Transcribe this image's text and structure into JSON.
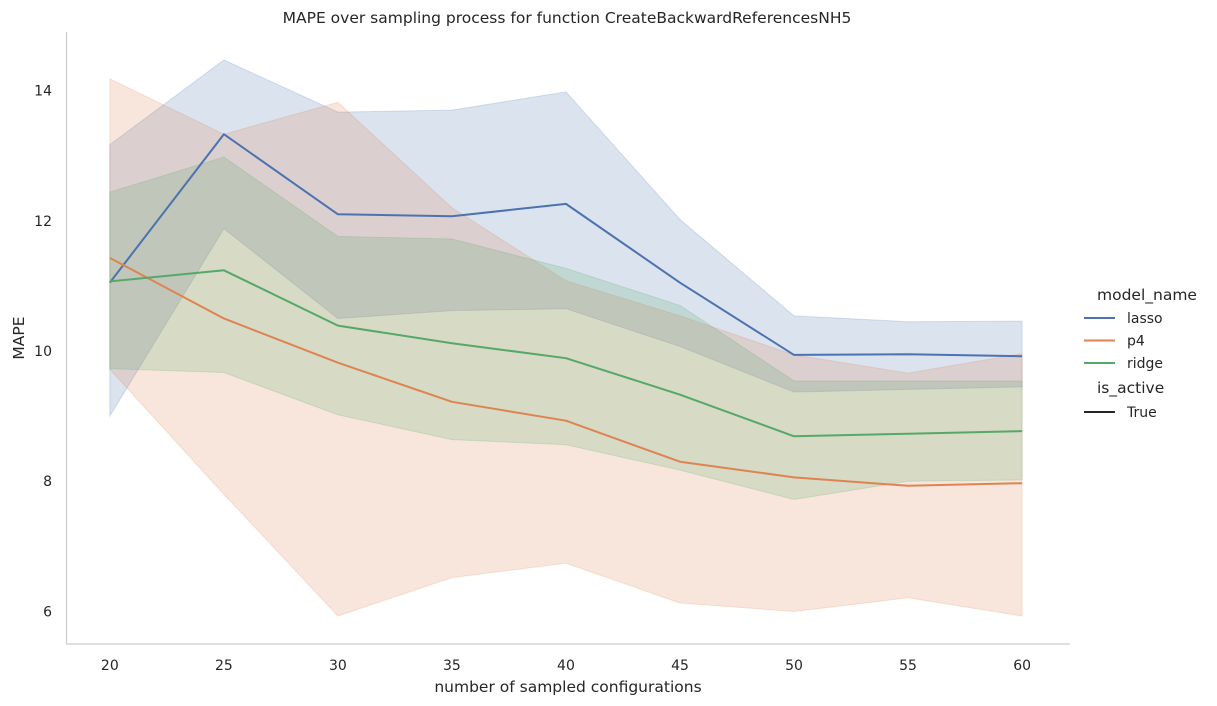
{
  "chart_data": {
    "type": "line",
    "title": "MAPE over sampling process for function CreateBackwardReferencesNH5",
    "xlabel": "number of sampled configurations",
    "ylabel": "MAPE",
    "x": [
      20,
      25,
      30,
      35,
      40,
      45,
      50,
      55,
      60
    ],
    "x_ticks": [
      "20",
      "25",
      "30",
      "35",
      "40",
      "45",
      "50",
      "55",
      "60"
    ],
    "y_ticks": [
      "6",
      "8",
      "10",
      "12",
      "14"
    ],
    "xlim": [
      18.1,
      62.1
    ],
    "ylim": [
      5.5,
      14.9
    ],
    "grid": false,
    "legend_position": "right",
    "legend": {
      "title": "model_name",
      "hue_title": "is_active",
      "style_entry": "True"
    },
    "series": [
      {
        "name": "lasso",
        "color": "#4c72b0",
        "values": [
          11.05,
          13.33,
          12.1,
          12.07,
          12.26,
          11.05,
          9.94,
          9.95,
          9.92
        ],
        "ci_low": [
          9.0,
          11.88,
          10.5,
          10.62,
          10.65,
          10.07,
          9.37,
          9.41,
          9.45
        ],
        "ci_high": [
          13.17,
          14.47,
          13.67,
          13.7,
          13.98,
          12.02,
          10.54,
          10.45,
          10.46
        ]
      },
      {
        "name": "p4",
        "color": "#dd8452",
        "values": [
          11.43,
          10.5,
          9.82,
          9.22,
          8.93,
          8.3,
          8.06,
          7.93,
          7.97
        ],
        "ci_low": [
          9.72,
          7.8,
          5.93,
          6.52,
          6.74,
          6.13,
          6.0,
          6.21,
          5.93
        ],
        "ci_high": [
          14.18,
          13.33,
          13.82,
          12.2,
          11.08,
          10.54,
          9.94,
          9.66,
          9.96
        ]
      },
      {
        "name": "ridge",
        "color": "#55a868",
        "values": [
          11.07,
          11.24,
          10.39,
          10.12,
          9.89,
          9.33,
          8.69,
          8.73,
          8.77
        ],
        "ci_low": [
          9.73,
          9.67,
          9.02,
          8.64,
          8.56,
          8.17,
          7.72,
          8.0,
          8.02
        ],
        "ci_high": [
          12.44,
          12.98,
          11.76,
          11.72,
          11.27,
          10.7,
          9.54,
          9.54,
          9.54
        ]
      }
    ]
  }
}
